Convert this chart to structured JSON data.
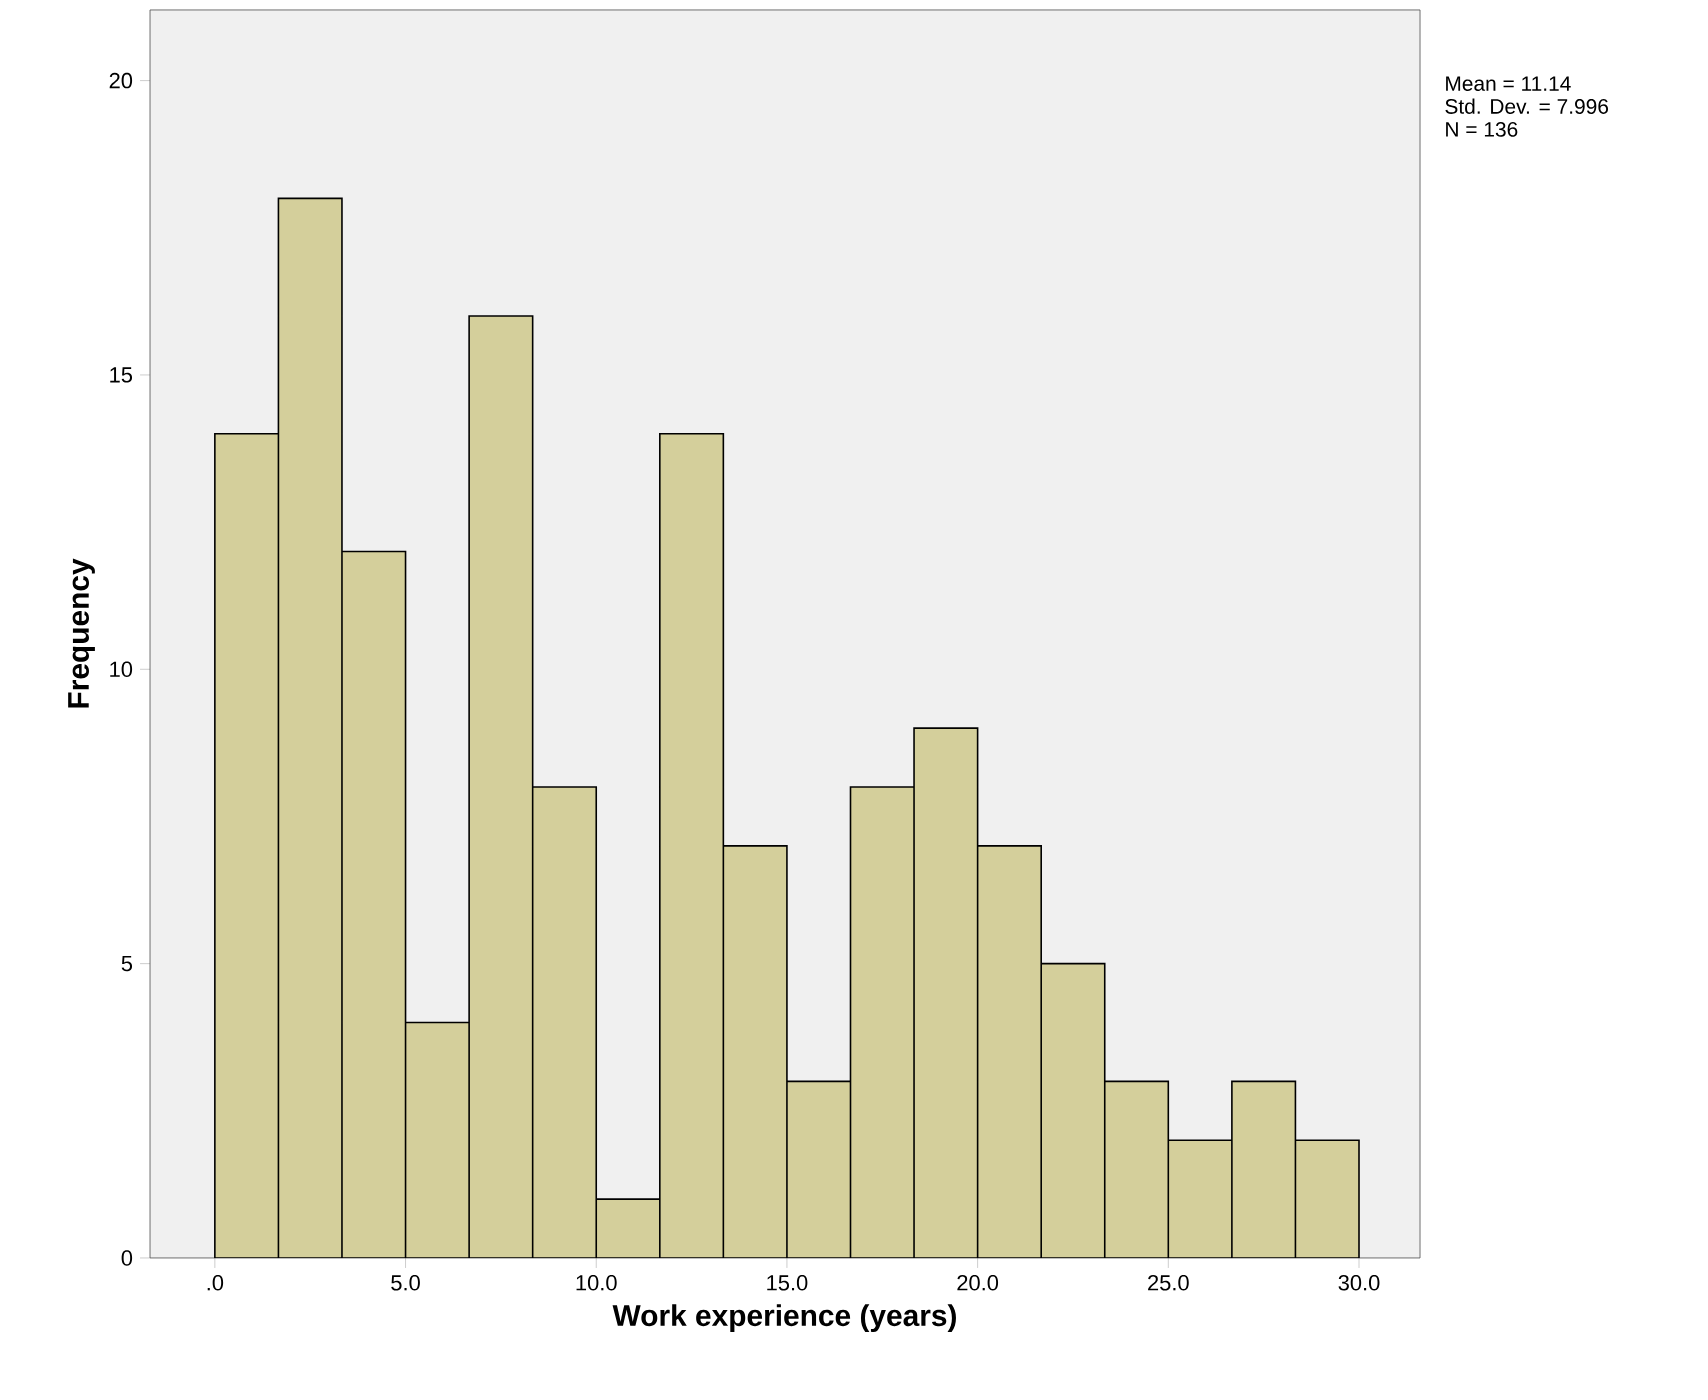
{
  "chart_data": {
    "type": "histogram",
    "xlabel": "Work experience (years)",
    "ylabel": "Frequency",
    "bins": [
      0,
      1.667,
      3.333,
      5,
      6.667,
      8.333,
      10,
      11.667,
      13.333,
      15,
      16.667,
      18.333,
      20,
      21.667,
      23.333,
      25,
      26.667,
      28.333,
      30
    ],
    "values": [
      14,
      18,
      12,
      4,
      16,
      8,
      1,
      14,
      7,
      3,
      8,
      9,
      7,
      5,
      3,
      2,
      3,
      2
    ],
    "color": "#d4cf9b",
    "xlim": [
      -1.7,
      31.6
    ],
    "ylim": [
      0,
      21.2
    ],
    "xticks": [
      {
        "value": 0,
        "label": ".0"
      },
      {
        "value": 5,
        "label": "5.0"
      },
      {
        "value": 10,
        "label": "10.0"
      },
      {
        "value": 15,
        "label": "15.0"
      },
      {
        "value": 20,
        "label": "20.0"
      },
      {
        "value": 25,
        "label": "25.0"
      },
      {
        "value": 30,
        "label": "30.0"
      }
    ],
    "yticks": [
      0,
      5,
      10,
      15,
      20
    ],
    "grid": false,
    "annotations": [
      "Mean = 11.14",
      "Std. Dev. = 7.996",
      "N = 136"
    ]
  }
}
